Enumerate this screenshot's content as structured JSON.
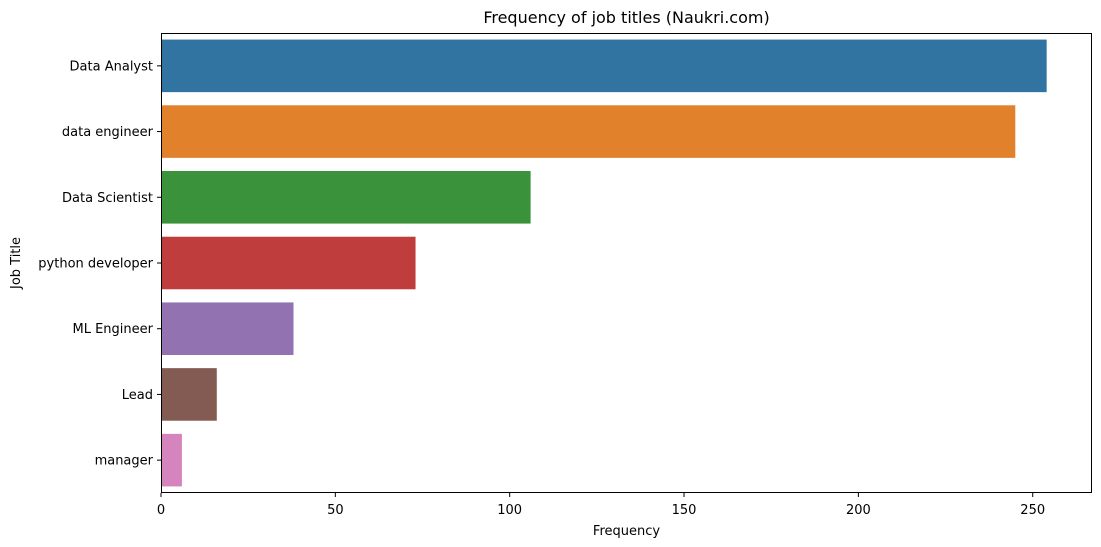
{
  "chart_data": {
    "type": "bar",
    "orientation": "horizontal",
    "title": "Frequency of job titles (Naukri.com)",
    "xlabel": "Frequency",
    "ylabel": "Job Title",
    "xlim": [
      0,
      267
    ],
    "xticks": [
      0,
      50,
      100,
      150,
      200,
      250
    ],
    "categories": [
      "Data Analyst",
      "data engineer",
      "Data Scientist",
      "python developer",
      "ML Engineer",
      "Lead",
      "manager"
    ],
    "values": [
      254,
      245,
      106,
      73,
      38,
      16,
      6
    ],
    "colors": [
      "#3274a1",
      "#e1812c",
      "#3a923a",
      "#c03d3e",
      "#9372b2",
      "#845b53",
      "#d684bd"
    ],
    "grid": false,
    "legend": "none"
  }
}
